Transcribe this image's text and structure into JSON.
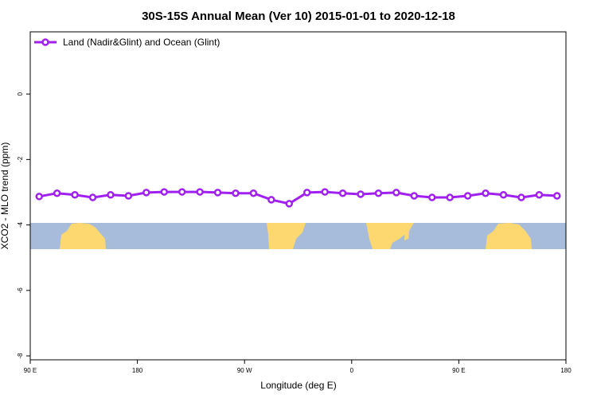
{
  "chart_data": {
    "type": "line",
    "title": "30S-15S Annual Mean (Ver 10)   2015-01-01 to 2020-12-18",
    "x_label": "Longitude (deg E)",
    "y_label": "XCO2 - MLO trend (ppm)",
    "x": [
      97.5,
      112.5,
      127.5,
      142.5,
      157.5,
      172.5,
      187.5,
      202.5,
      217.5,
      232.5,
      247.5,
      262.5,
      277.5,
      292.5,
      307.5,
      322.5,
      337.5,
      352.5,
      367.5,
      382.5,
      397.5,
      412.5,
      427.5,
      442.5,
      457.5,
      472.5,
      487.5,
      502.5,
      517.5,
      532.5
    ],
    "series": [
      {
        "name": "Land (Nadir&Glint) and Ocean (Glint)",
        "color": "#a020f0",
        "values": [
          -3.13,
          -3.03,
          -3.08,
          -3.16,
          -3.08,
          -3.11,
          -3.01,
          -2.99,
          -2.99,
          -2.99,
          -3.01,
          -3.03,
          -3.03,
          -3.23,
          -3.35,
          -3.01,
          -2.99,
          -3.03,
          -3.06,
          -3.03,
          -3.01,
          -3.11,
          -3.16,
          -3.16,
          -3.11,
          -3.03,
          -3.08,
          -3.16,
          -3.08,
          -3.11
        ]
      }
    ],
    "xlim": [
      90,
      540
    ],
    "xticks": [
      {
        "value": 90,
        "label": "90 E"
      },
      {
        "value": 180,
        "label": "180"
      },
      {
        "value": 270,
        "label": "90 W"
      },
      {
        "value": 360,
        "label": "0"
      },
      {
        "value": 450,
        "label": "90 E"
      },
      {
        "value": 540,
        "label": "180"
      }
    ],
    "ylim": [
      -8.12,
      1.9
    ],
    "yticks": [
      0,
      -2,
      -4,
      -6,
      -8
    ],
    "legend": "top-left"
  }
}
